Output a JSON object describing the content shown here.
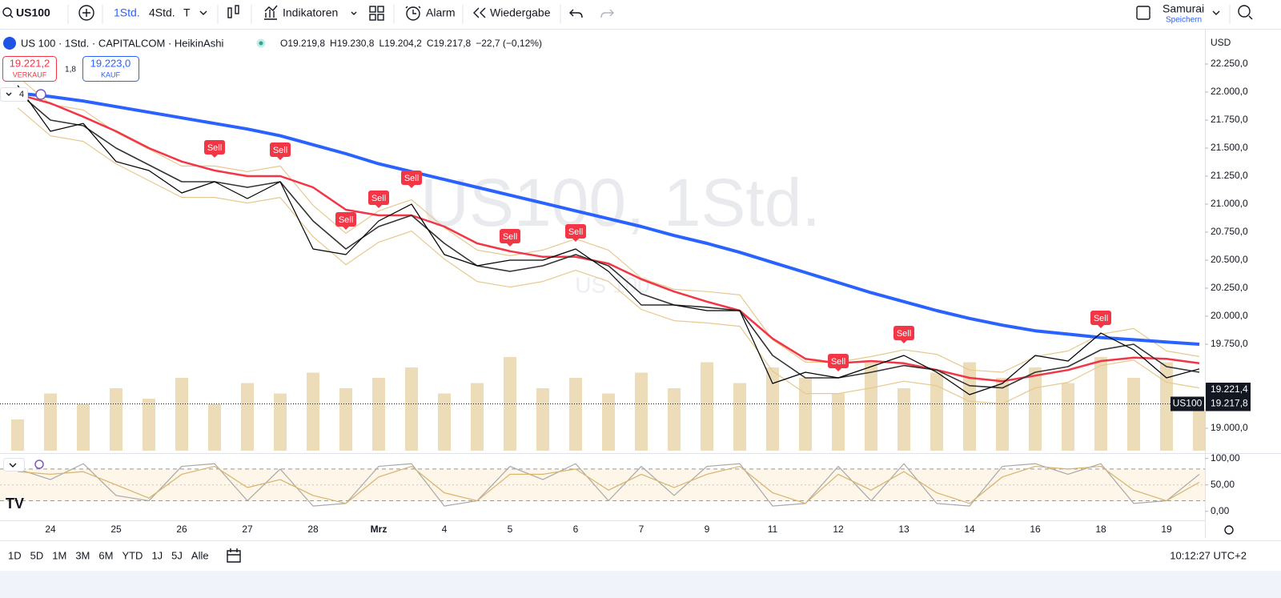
{
  "toolbar": {
    "symbol": "US100",
    "intervals": [
      "1Std.",
      "4Std.",
      "T"
    ],
    "indicators": "Indikatoren",
    "alarm": "Alarm",
    "replay": "Wiedergabe",
    "layout": "Samurai",
    "save": "Speichern"
  },
  "legend": {
    "title": "US 100 · 1Std. · CAPITALCOM · HeikinAshi",
    "ohlc": [
      "O19.219,8",
      "H19.230,8",
      "L19.204,2",
      "C19.217,8",
      "−22,7 (−0,12%)"
    ],
    "sell_price": "19.221,2",
    "sell_label": "VERKAUF",
    "spread": "1,8",
    "buy_price": "19.223,0",
    "buy_label": "KAUF",
    "indicator_count": "4"
  },
  "watermark": {
    "main": "US100, 1Std.",
    "sub": "US 100"
  },
  "currency": "USD",
  "chart_data": [
    {
      "type": "line",
      "categories": [
        null,
        "24",
        null,
        "25",
        null,
        "26",
        null,
        "27",
        null,
        "28",
        null,
        "Mrz",
        null,
        "4",
        null,
        "5",
        null,
        "6",
        null,
        "7",
        null,
        "9",
        null,
        "11",
        null,
        "12",
        null,
        "13",
        null,
        "14",
        null,
        "16",
        null,
        "18",
        null,
        "19",
        null
      ],
      "series": [
        {
          "color": "#e9d3a6",
          "axis": "y2",
          "values": [
            30,
            55,
            45,
            60,
            50,
            70,
            45,
            65,
            55,
            75,
            60,
            70,
            80,
            55,
            65,
            90,
            60,
            70,
            55,
            75,
            60,
            85,
            65,
            80,
            70,
            55,
            85,
            60,
            75,
            85,
            70,
            80,
            65,
            90,
            70,
            85,
            40
          ]
        },
        {
          "color": "#e6c98f",
          "values": [
            22140,
            21890,
            21840,
            21640,
            21490,
            21340,
            21340,
            21290,
            21340,
            20990,
            20740,
            20940,
            21040,
            20790,
            20590,
            20540,
            20590,
            20690,
            20590,
            20340,
            20240,
            20220,
            20190,
            19790,
            19590,
            19590,
            19640,
            19700,
            19660,
            19520,
            19500,
            19640,
            19690,
            19840,
            19890,
            19690,
            19640
          ]
        },
        {
          "color": "#e6c98f",
          "values": [
            21860,
            21610,
            21560,
            21360,
            21210,
            21060,
            21060,
            21010,
            21060,
            20710,
            20460,
            20660,
            20760,
            20510,
            20310,
            20260,
            20310,
            20410,
            20310,
            20060,
            19960,
            19940,
            19910,
            19510,
            19310,
            19310,
            19360,
            19420,
            19380,
            19240,
            19220,
            19360,
            19410,
            19560,
            19610,
            19410,
            19360
          ]
        },
        {
          "color": "#f23645",
          "values": [
            21980,
            21900,
            21780,
            21650,
            21500,
            21380,
            21300,
            21250,
            21250,
            21150,
            20950,
            20900,
            20900,
            20800,
            20650,
            20580,
            20530,
            20530,
            20470,
            20330,
            20220,
            20130,
            20050,
            19800,
            19620,
            19580,
            19600,
            19580,
            19520,
            19450,
            19420,
            19470,
            19520,
            19600,
            19630,
            19620,
            19580
          ]
        },
        {
          "color": "#333333",
          "values": [
            22000,
            21750,
            21700,
            21500,
            21350,
            21200,
            21200,
            21150,
            21200,
            20850,
            20600,
            20800,
            20900,
            20650,
            20450,
            20400,
            20450,
            20550,
            20450,
            20200,
            20100,
            20080,
            20050,
            19650,
            19450,
            19450,
            19500,
            19560,
            19520,
            19380,
            19360,
            19500,
            19550,
            19700,
            19750,
            19550,
            19500
          ]
        },
        {
          "color": "#2962ff",
          "values": [
            21990,
            21960,
            21920,
            21870,
            21820,
            21770,
            21720,
            21670,
            21610,
            21530,
            21450,
            21360,
            21290,
            21220,
            21150,
            21080,
            21010,
            20940,
            20870,
            20800,
            20720,
            20650,
            20570,
            20480,
            20390,
            20300,
            20210,
            20130,
            20050,
            19980,
            19920,
            19870,
            19840,
            19810,
            19790,
            19770,
            19750
          ]
        },
        {
          "color": "#000000",
          "values": [
            22060,
            21650,
            21720,
            21380,
            21300,
            21100,
            21200,
            21050,
            21200,
            20600,
            20550,
            20850,
            21000,
            20550,
            20450,
            20500,
            20500,
            20600,
            20400,
            20100,
            20100,
            20050,
            20050,
            19400,
            19500,
            19450,
            19550,
            19650,
            19500,
            19300,
            19400,
            19650,
            19600,
            19850,
            19700,
            19450,
            19530
          ]
        }
      ],
      "ylim": [
        18800,
        22500
      ],
      "yticks": [
        {
          "value": 19000,
          "label": "19.000,0"
        },
        {
          "value": 19750,
          "label": "19.750,0"
        },
        {
          "value": 20000,
          "label": "20.000,0"
        },
        {
          "value": 20250,
          "label": "20.250,0"
        },
        {
          "value": 20500,
          "label": "20.500,0"
        },
        {
          "value": 20750,
          "label": "20.750,0"
        },
        {
          "value": 21000,
          "label": "21.000,0"
        },
        {
          "value": 21250,
          "label": "21.250,0"
        },
        {
          "value": 21500,
          "label": "21.500,0"
        },
        {
          "value": 21750,
          "label": "21.750,0"
        },
        {
          "value": 22000,
          "label": "22.000,0"
        },
        {
          "value": 22250,
          "label": "22.250,0"
        }
      ],
      "y2lim": [
        0,
        100
      ],
      "signals": {
        "label": "Sell",
        "color": "#f23645",
        "values": [
          null,
          null,
          null,
          null,
          null,
          null,
          21507,
          null,
          21486,
          null,
          20864,
          21057,
          21236,
          null,
          null,
          20714,
          null,
          20757,
          null,
          null,
          null,
          null,
          null,
          null,
          null,
          19600,
          null,
          19850,
          null,
          null,
          null,
          null,
          null,
          19986,
          null,
          null,
          null
        ]
      },
      "price_labels": [
        {
          "value": 19221.4,
          "label": "19.221,4"
        },
        {
          "value": 19217.8,
          "label": "19.217,8"
        }
      ],
      "symbol_tag": "US100"
    },
    {
      "type": "line",
      "series": [
        {
          "color": "#a8a8a8",
          "values": [
            80,
            60,
            90,
            30,
            20,
            85,
            90,
            20,
            80,
            10,
            15,
            85,
            90,
            10,
            20,
            85,
            60,
            90,
            20,
            85,
            30,
            85,
            90,
            10,
            15,
            85,
            20,
            90,
            15,
            10,
            85,
            90,
            70,
            90,
            15,
            20,
            70
          ]
        },
        {
          "color": "#d8b36a",
          "values": [
            75,
            70,
            75,
            50,
            25,
            70,
            85,
            45,
            60,
            30,
            15,
            65,
            85,
            35,
            20,
            70,
            70,
            80,
            40,
            70,
            45,
            70,
            85,
            35,
            15,
            70,
            40,
            75,
            35,
            15,
            65,
            85,
            80,
            85,
            40,
            20,
            55
          ]
        }
      ],
      "ylim": [
        -20,
        110
      ],
      "yticks": [
        {
          "value": 0,
          "label": "0,00"
        },
        {
          "value": 50,
          "label": "50,00"
        },
        {
          "value": 100,
          "label": "100,00"
        }
      ],
      "bands": [
        20,
        80
      ]
    }
  ],
  "bottom_bar": {
    "ranges": [
      "1D",
      "5D",
      "1M",
      "3M",
      "6M",
      "YTD",
      "1J",
      "5J",
      "Alle"
    ],
    "time": "10:12:27 UTC+2"
  }
}
